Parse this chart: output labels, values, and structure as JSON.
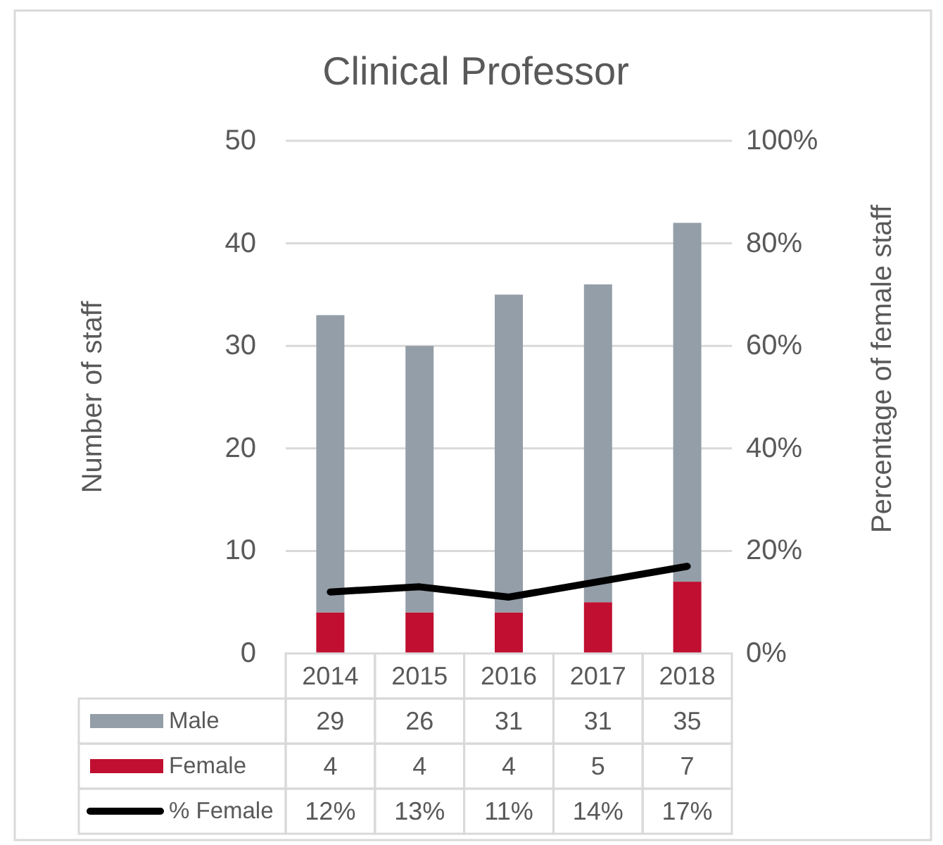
{
  "chart_data": {
    "type": "bar",
    "title": "Clinical Professor",
    "ylabel": "Number of staff",
    "y2label": "Percentage of female staff",
    "categories": [
      "2014",
      "2015",
      "2016",
      "2017",
      "2018"
    ],
    "series": [
      {
        "name": "Female",
        "color": "#c00f31",
        "values": [
          4,
          4,
          4,
          5,
          7
        ],
        "value_labels": [
          "4",
          "4",
          "4",
          "5",
          "7"
        ]
      },
      {
        "name": "Male",
        "color": "#949ea8",
        "values": [
          29,
          26,
          31,
          31,
          35
        ],
        "value_labels": [
          "29",
          "26",
          "31",
          "31",
          "35"
        ]
      },
      {
        "name": "% Female",
        "type": "line",
        "axis": "y2",
        "color": "#000000",
        "values": [
          12,
          13,
          11,
          14,
          17
        ],
        "value_labels": [
          "12%",
          "13%",
          "11%",
          "14%",
          "17%"
        ]
      }
    ],
    "stacked": true,
    "ylim": [
      0,
      50
    ],
    "yticks": [
      0,
      10,
      20,
      30,
      40,
      50
    ],
    "y2lim": [
      0,
      100
    ],
    "y2ticks": [
      {
        "value": 0,
        "label": "0%"
      },
      {
        "value": 20,
        "label": "20%"
      },
      {
        "value": 40,
        "label": "40%"
      },
      {
        "value": 60,
        "label": "60%"
      },
      {
        "value": 80,
        "label": "80%"
      },
      {
        "value": 100,
        "label": "100%"
      }
    ],
    "grid": "y",
    "legend": "bottom"
  }
}
